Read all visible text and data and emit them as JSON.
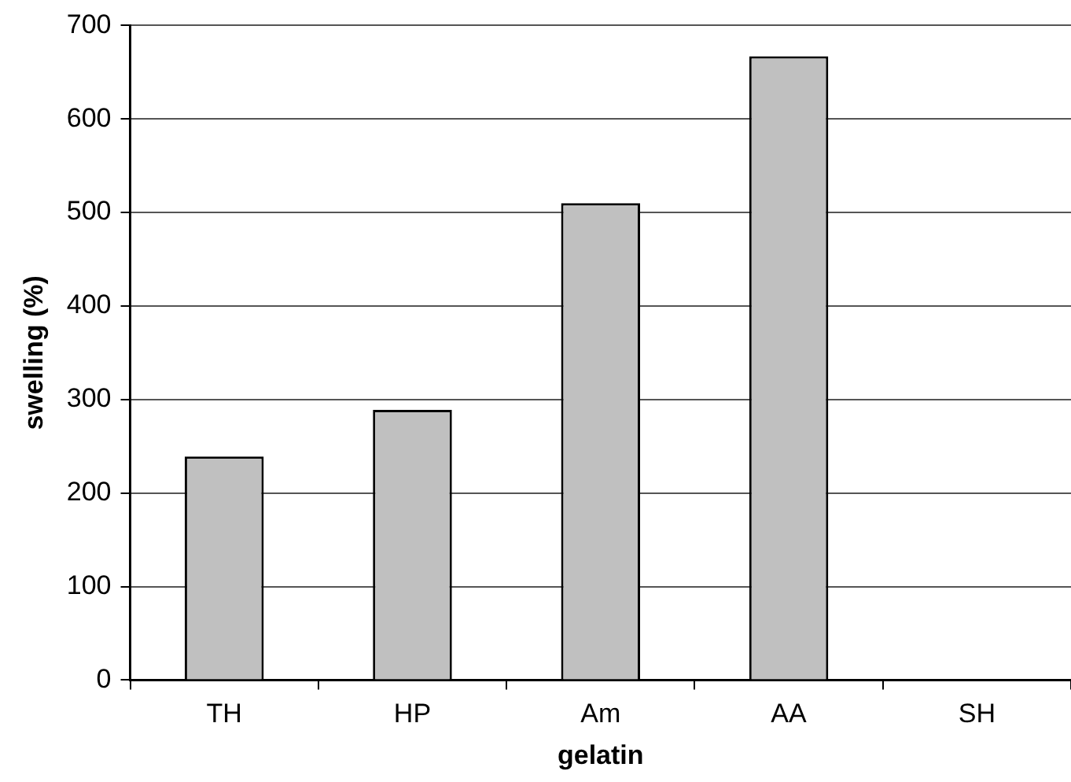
{
  "chart_data": {
    "type": "bar",
    "xlabel": "gelatin",
    "ylabel": "swelling (%)",
    "categories": [
      "TH",
      "HP",
      "Am",
      "AA",
      "SH"
    ],
    "values": [
      239,
      289,
      510,
      667,
      null
    ],
    "color": "#c0c0c0",
    "ylim": [
      0,
      700
    ],
    "yticks": [
      0,
      100,
      200,
      300,
      400,
      500,
      600,
      700
    ],
    "grid": "y",
    "legend": false
  }
}
